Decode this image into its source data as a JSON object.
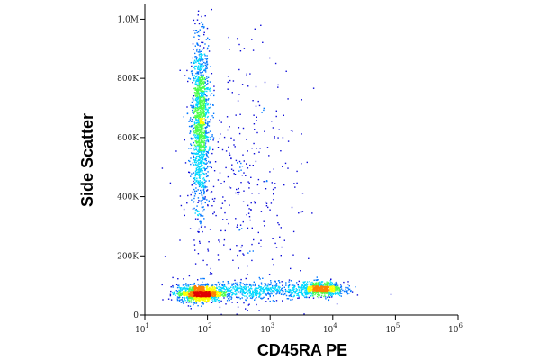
{
  "chart_data": {
    "type": "scatter",
    "title": "",
    "xlabel": "CD45RA PE",
    "ylabel": "Side Scatter",
    "x_scale": "log",
    "xlim": [
      10,
      1000000
    ],
    "ylim": [
      0,
      1050000
    ],
    "grid": false,
    "legend": "none",
    "density_coloring": true,
    "x_ticks": [
      {
        "value": 10,
        "base": "10",
        "exp": "1"
      },
      {
        "value": 100,
        "base": "10",
        "exp": "2"
      },
      {
        "value": 1000,
        "base": "10",
        "exp": "3"
      },
      {
        "value": 10000,
        "base": "10",
        "exp": "4"
      },
      {
        "value": 100000,
        "base": "10",
        "exp": "5"
      },
      {
        "value": 1000000,
        "base": "10",
        "exp": "6"
      }
    ],
    "y_ticks": [
      {
        "value": 0,
        "label": "0"
      },
      {
        "value": 200000,
        "label": "200K"
      },
      {
        "value": 400000,
        "label": "400K"
      },
      {
        "value": 600000,
        "label": "600K"
      },
      {
        "value": 800000,
        "label": "800K"
      },
      {
        "value": 1000000,
        "label": "1,0M"
      }
    ],
    "populations": [
      {
        "x_center": 75,
        "x_log_sd": 0.07,
        "y_center": 650000,
        "y_sd": 140000,
        "relative_count": 0.34
      },
      {
        "x_center": 75,
        "x_log_sd": 0.18,
        "y_center": 75000,
        "y_sd": 14000,
        "relative_count": 0.26
      },
      {
        "x_center": 6500,
        "x_log_sd": 0.18,
        "y_center": 90000,
        "y_sd": 12000,
        "relative_count": 0.16
      },
      {
        "x_center": 600,
        "x_log_sd": 0.5,
        "y_center": 85000,
        "y_sd": 15000,
        "relative_count": 0.14
      },
      {
        "x_center": 300,
        "x_log_sd": 0.5,
        "y_center": 420000,
        "y_sd": 260000,
        "relative_count": 0.1
      }
    ],
    "density_colors": [
      "#0b0bd8",
      "#0077ff",
      "#00d8ff",
      "#4dff4d",
      "#ffff00",
      "#ff8000",
      "#e00000"
    ]
  }
}
